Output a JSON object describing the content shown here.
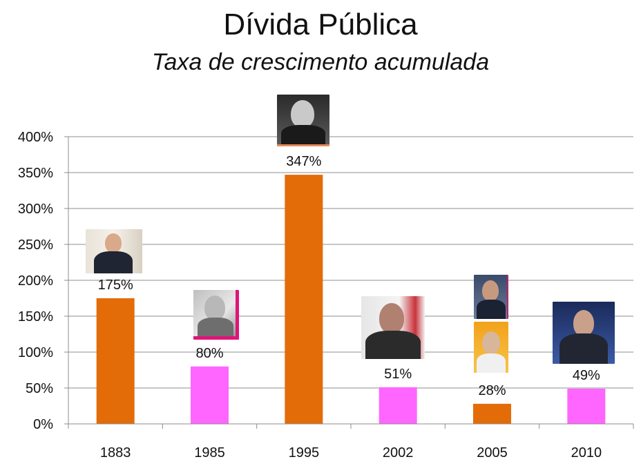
{
  "header": {
    "title": "Dívida Pública",
    "subtitle": "Taxa de crescimento acumulada"
  },
  "chart_data": {
    "type": "bar",
    "categories": [
      "1883",
      "1985",
      "1995",
      "2002",
      "2005",
      "2010"
    ],
    "values": [
      175,
      80,
      347,
      51,
      28,
      49
    ],
    "data_labels": [
      "175%",
      "80%",
      "347%",
      "51%",
      "28%",
      "49%"
    ],
    "bar_colors": [
      "#e36c09",
      "#ff66ff",
      "#e36c09",
      "#ff66ff",
      "#e36c09",
      "#ff66ff"
    ],
    "ylim": [
      0,
      400
    ],
    "yticks": [
      0,
      50,
      100,
      150,
      200,
      250,
      300,
      350,
      400
    ],
    "ytick_labels": [
      "0%",
      "50%",
      "100%",
      "150%",
      "200%",
      "250%",
      "300%",
      "350%",
      "400%"
    ],
    "grid": true,
    "legend": "none",
    "annotations": "portrait photo above each bar"
  }
}
